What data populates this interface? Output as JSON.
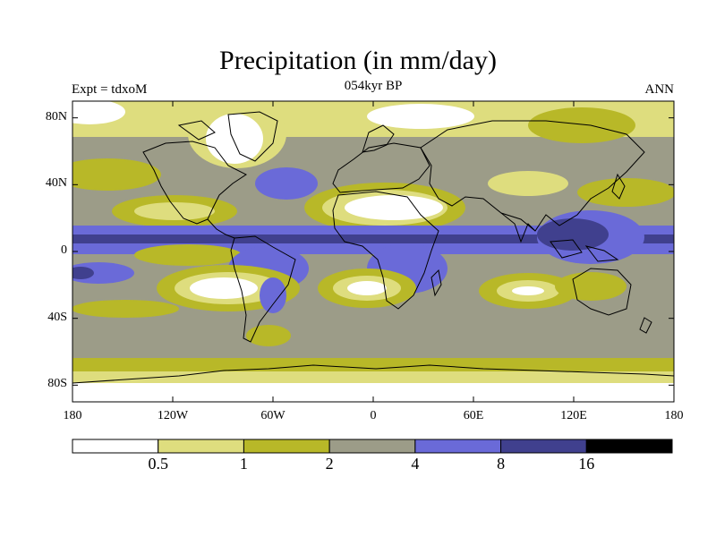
{
  "title": "Precipitation (in mm/day)",
  "subtitle_left": "Expt = tdxoM",
  "subtitle_center": "054kyr BP",
  "subtitle_right": "ANN",
  "lat_ticks": [
    {
      "label": "80N",
      "lat": 80
    },
    {
      "label": "40N",
      "lat": 40
    },
    {
      "label": "0",
      "lat": 0
    },
    {
      "label": "40S",
      "lat": -40
    },
    {
      "label": "80S",
      "lat": -80
    }
  ],
  "lon_ticks": [
    {
      "label": "180",
      "lon": -180
    },
    {
      "label": "120W",
      "lon": -120
    },
    {
      "label": "60W",
      "lon": -60
    },
    {
      "label": "0",
      "lon": 0
    },
    {
      "label": "60E",
      "lon": 60
    },
    {
      "label": "120E",
      "lon": 120
    },
    {
      "label": "180",
      "lon": 180
    }
  ],
  "colorbar": {
    "labels": [
      "0.5",
      "1",
      "2",
      "4",
      "8",
      "16"
    ],
    "colors": [
      "#ffffff",
      "#dedd7e",
      "#b8b828",
      "#9c9c88",
      "#6a6ad8",
      "#40408e",
      "#000000"
    ]
  }
}
